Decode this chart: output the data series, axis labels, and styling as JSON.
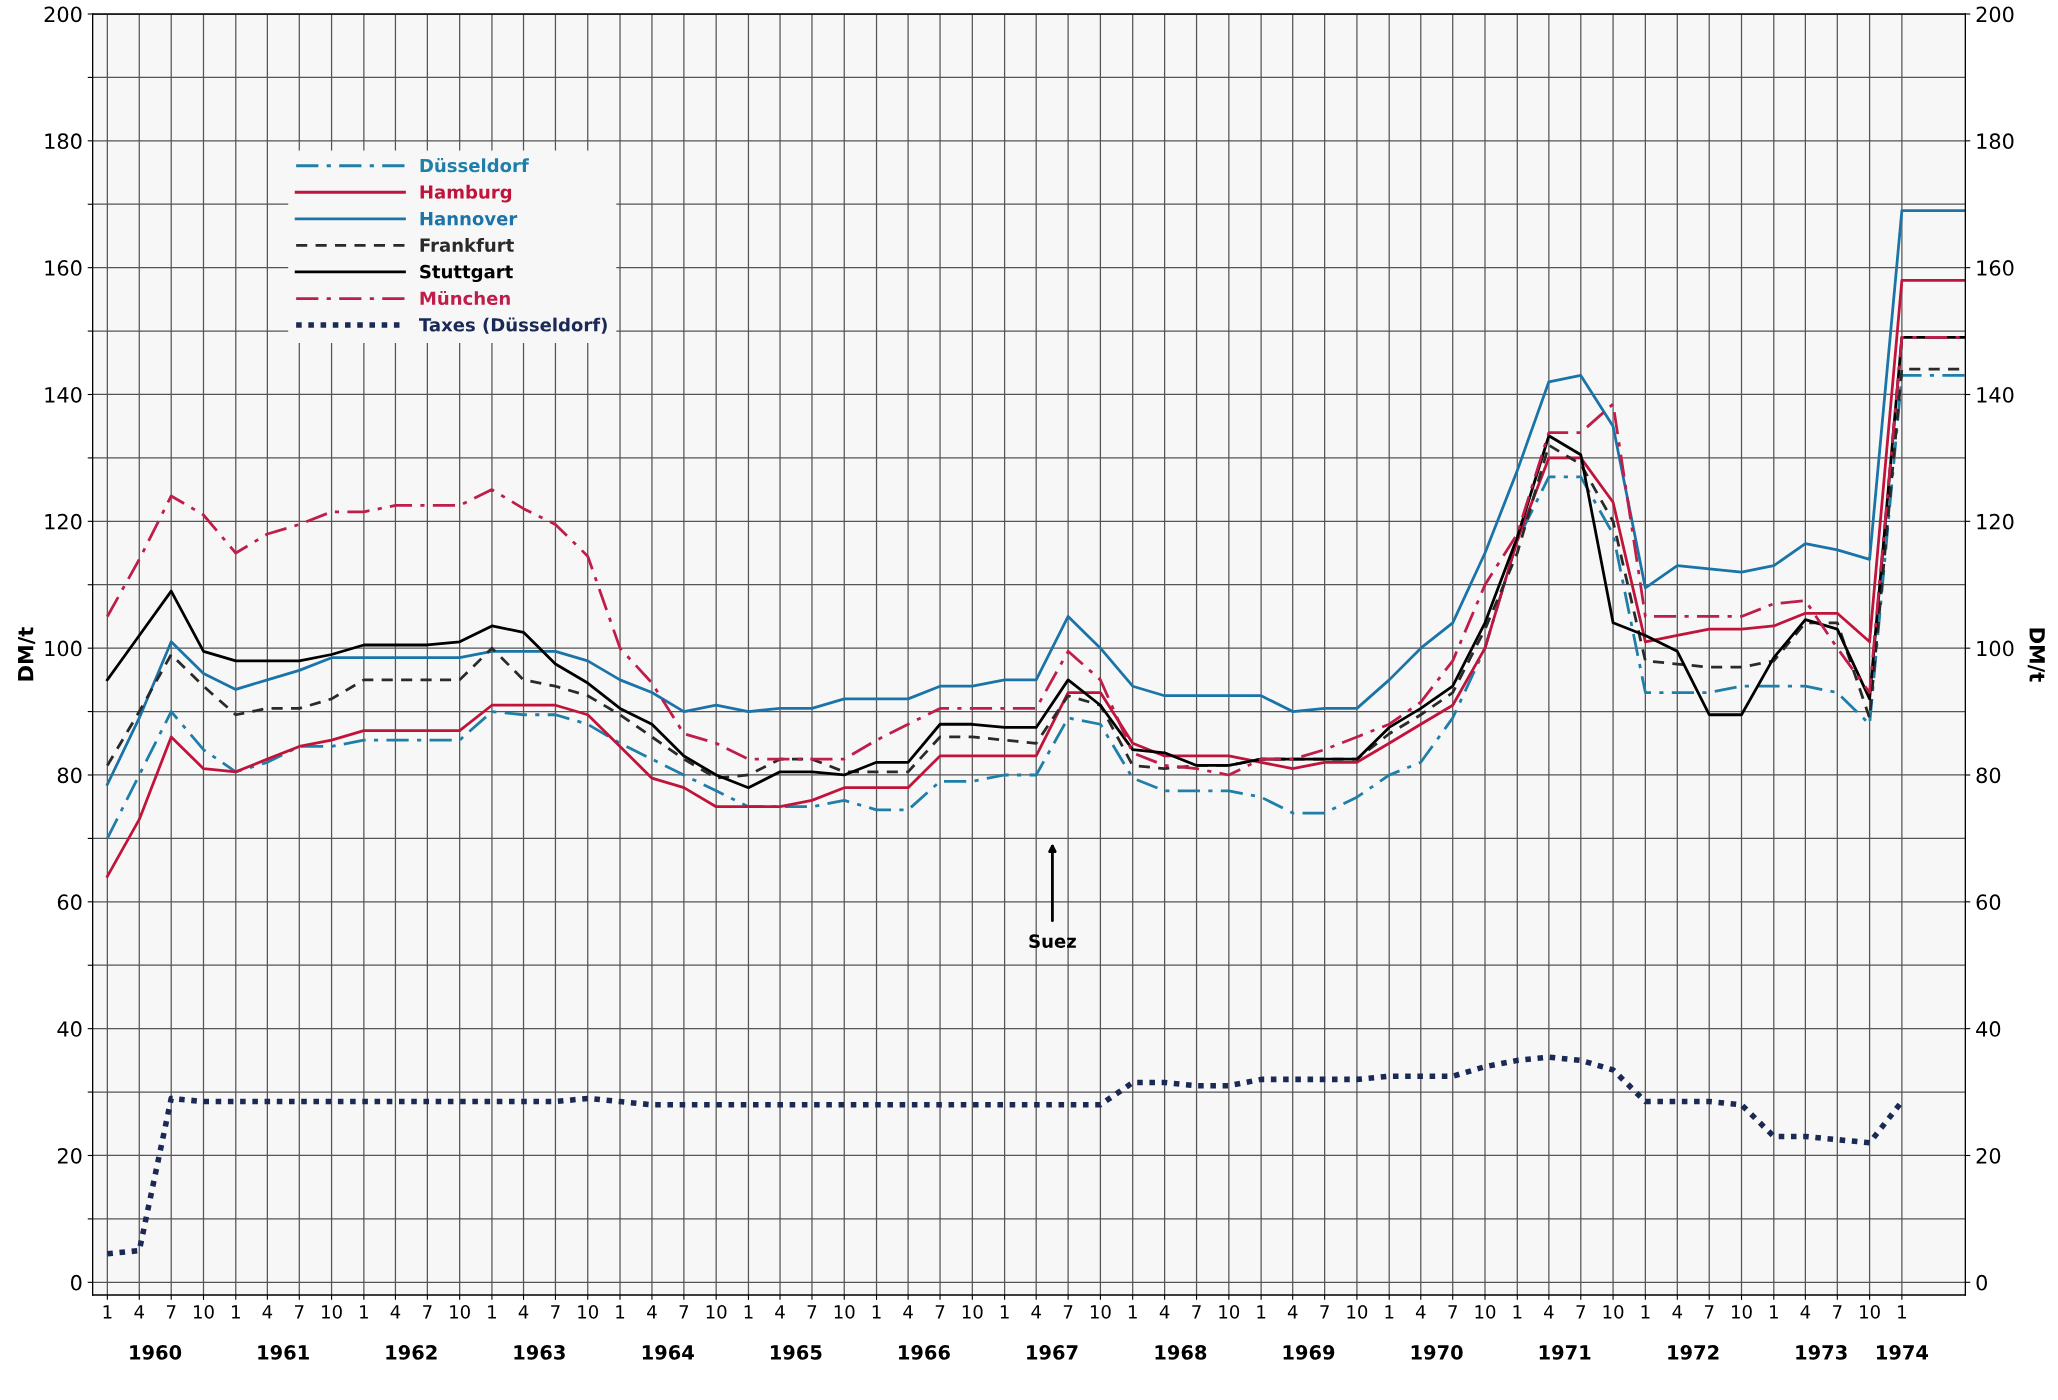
{
  "chart_data": {
    "type": "line",
    "x": [
      "1960-01",
      "1960-04",
      "1960-07",
      "1960-10",
      "1961-01",
      "1961-04",
      "1961-07",
      "1961-10",
      "1962-01",
      "1962-04",
      "1962-07",
      "1962-10",
      "1963-01",
      "1963-04",
      "1963-07",
      "1963-10",
      "1964-01",
      "1964-04",
      "1964-07",
      "1964-10",
      "1965-01",
      "1965-04",
      "1965-07",
      "1965-10",
      "1966-01",
      "1966-04",
      "1966-07",
      "1966-10",
      "1967-01",
      "1967-04",
      "1967-07",
      "1967-10",
      "1968-01",
      "1968-04",
      "1968-07",
      "1968-10",
      "1969-01",
      "1969-04",
      "1969-07",
      "1969-10",
      "1970-01",
      "1970-04",
      "1970-07",
      "1970-10",
      "1971-01",
      "1971-04",
      "1971-07",
      "1971-10",
      "1972-01",
      "1972-04",
      "1972-07",
      "1972-10",
      "1973-01",
      "1973-04",
      "1973-07",
      "1973-10",
      "1974-01",
      "1974-07"
    ],
    "series": [
      {
        "name": "Düsseldorf",
        "color": "#1f7fa8",
        "line_style": "dashdot",
        "values": [
          70,
          80,
          90,
          84,
          80.5,
          82,
          84.5,
          84.5,
          85.5,
          85.5,
          85.5,
          85.5,
          90,
          89.5,
          89.5,
          88,
          85,
          82.5,
          80,
          77.5,
          75,
          75,
          75,
          76,
          74.5,
          74.5,
          79,
          79,
          80,
          80,
          89,
          88,
          79.5,
          77.5,
          77.5,
          77.5,
          76.5,
          74,
          74,
          76.5,
          80,
          82,
          89,
          100,
          117,
          127,
          127,
          118,
          93,
          93,
          93,
          94,
          94,
          94,
          93,
          88,
          143,
          143
        ]
      },
      {
        "name": "Hamburg",
        "color": "#c0143c",
        "line_style": "solid",
        "values": [
          64,
          73,
          86,
          81,
          80.5,
          82.5,
          84.5,
          85.5,
          87,
          87,
          87,
          87,
          91,
          91,
          91,
          89.5,
          84.5,
          79.5,
          78,
          75,
          75,
          75,
          76,
          78,
          78,
          78,
          83,
          83,
          83,
          83,
          93,
          93,
          85,
          83,
          83,
          83,
          82,
          81,
          82,
          82,
          85,
          88,
          91,
          100,
          117,
          130,
          130,
          123,
          101,
          102,
          103,
          103,
          103.5,
          105.5,
          105.5,
          101,
          158,
          158
        ]
      },
      {
        "name": "Hannover",
        "color": "#1a74a8",
        "line_style": "solid",
        "values": [
          78.5,
          89,
          101,
          96,
          93.5,
          95,
          96.5,
          98.5,
          98.5,
          98.5,
          98.5,
          98.5,
          99.5,
          99.5,
          99.5,
          98,
          95,
          93,
          90,
          91,
          90,
          90.5,
          90.5,
          92,
          92,
          92,
          94,
          94,
          95,
          95,
          105,
          100,
          94,
          92.5,
          92.5,
          92.5,
          92.5,
          90,
          90.5,
          90.5,
          95,
          100,
          104,
          115,
          128,
          142,
          143,
          135,
          109.5,
          113,
          112.5,
          112,
          113,
          116.5,
          115.5,
          114,
          169,
          169
        ]
      },
      {
        "name": "Frankfurt",
        "color": "#2a2a2a",
        "line_style": "dashed",
        "values": [
          81.5,
          90,
          99,
          94,
          89.5,
          90.5,
          90.5,
          92,
          95,
          95,
          95,
          95,
          100,
          95,
          94,
          92.5,
          89.5,
          86,
          82.5,
          79.5,
          80,
          82.5,
          82.5,
          80.5,
          80.5,
          80.5,
          86,
          86,
          85.5,
          85,
          92.5,
          91,
          81.5,
          81,
          81.5,
          81.5,
          82.5,
          82.5,
          82.5,
          82.5,
          86.5,
          89.5,
          93,
          103,
          115,
          132,
          129,
          120,
          98,
          97.5,
          97,
          97,
          98,
          104,
          104,
          89,
          144,
          144
        ]
      },
      {
        "name": "Stuttgart",
        "color": "#000000",
        "line_style": "solid",
        "values": [
          95,
          102,
          109,
          99.5,
          98,
          98,
          98,
          99,
          100.5,
          100.5,
          100.5,
          101,
          103.5,
          102.5,
          97.5,
          94.5,
          90.5,
          88,
          83,
          80,
          78,
          80.5,
          80.5,
          80,
          82,
          82,
          88,
          88,
          87.5,
          87.5,
          95,
          91,
          84,
          83.5,
          81.5,
          81.5,
          82.5,
          82.5,
          82.5,
          82.5,
          87.5,
          90.5,
          94,
          104,
          117.5,
          133.5,
          130.5,
          104,
          102,
          99.5,
          89.5,
          89.5,
          98.5,
          104.5,
          103,
          92,
          149,
          149
        ]
      },
      {
        "name": "München",
        "color": "#c01e4a",
        "line_style": "dashdot",
        "values": [
          105,
          114,
          124,
          121,
          115,
          118,
          119.5,
          121.5,
          121.5,
          122.5,
          122.5,
          122.5,
          125,
          122,
          119.5,
          114.5,
          100,
          94.5,
          86.5,
          85,
          82.5,
          82.5,
          82.5,
          82.5,
          85.5,
          88,
          90.5,
          90.5,
          90.5,
          90.5,
          99.5,
          95,
          83.5,
          81.5,
          81,
          80,
          82.5,
          82.5,
          84,
          86,
          88,
          91.5,
          98,
          110,
          118,
          134,
          134,
          138.5,
          105,
          105,
          105,
          105,
          107,
          107.5,
          100,
          93,
          149,
          149
        ]
      },
      {
        "name": "Taxes (Düsseldorf)",
        "color": "#1b2a55",
        "line_style": "dotted",
        "values": [
          4.5,
          5,
          29,
          28.5,
          28.5,
          28.5,
          28.5,
          28.5,
          28.5,
          28.5,
          28.5,
          28.5,
          28.5,
          28.5,
          28.5,
          29,
          28.5,
          28,
          28,
          28,
          28,
          28,
          28,
          28,
          28,
          28,
          28,
          28,
          28,
          28,
          28,
          28,
          31.5,
          31.5,
          31,
          31,
          32,
          32,
          32,
          32,
          32.5,
          32.5,
          32.5,
          34,
          35,
          35.5,
          35,
          33.5,
          28.5,
          28.5,
          28.5,
          28,
          23,
          23,
          22.5,
          22,
          28.5,
          null
        ]
      }
    ],
    "ylabel": "DM/t",
    "y2label": "DM/t",
    "ylim": [
      -2,
      200
    ],
    "y2lim": [
      -2,
      200
    ],
    "yticks": [
      0,
      {
        "value": 10,
        "label": null
      },
      20,
      {
        "value": 30,
        "label": null
      },
      40,
      {
        "value": 50,
        "label": null
      },
      60,
      {
        "value": 70,
        "label": null
      },
      80,
      {
        "value": 90,
        "label": null
      },
      100,
      {
        "value": 110,
        "label": null
      },
      120,
      {
        "value": 130,
        "label": null
      },
      140,
      {
        "value": 150,
        "label": null
      },
      160,
      {
        "value": 170,
        "label": null
      },
      180,
      {
        "value": 190,
        "label": null
      },
      200
    ],
    "y2ticks": [
      0,
      20,
      40,
      60,
      80,
      100,
      120,
      140,
      160,
      180,
      200
    ],
    "xlim": [
      "1959-11-20",
      "1974-07"
    ],
    "xticks": [
      {
        "value": "1960-01",
        "label": "1"
      },
      {
        "value": "1960-04",
        "label": "4"
      },
      {
        "value": "1960-07",
        "label": "7"
      },
      {
        "value": "1960-10",
        "label": "10"
      },
      {
        "value": "1961-01",
        "label": "1"
      },
      {
        "value": "1961-04",
        "label": "4"
      },
      {
        "value": "1961-07",
        "label": "7"
      },
      {
        "value": "1961-10",
        "label": "10"
      },
      {
        "value": "1962-01",
        "label": "1"
      },
      {
        "value": "1962-04",
        "label": "4"
      },
      {
        "value": "1962-07",
        "label": "7"
      },
      {
        "value": "1962-10",
        "label": "10"
      },
      {
        "value": "1963-01",
        "label": "1"
      },
      {
        "value": "1963-04",
        "label": "4"
      },
      {
        "value": "1963-07",
        "label": "7"
      },
      {
        "value": "1963-10",
        "label": "10"
      },
      {
        "value": "1964-01",
        "label": "1"
      },
      {
        "value": "1964-04",
        "label": "4"
      },
      {
        "value": "1964-07",
        "label": "7"
      },
      {
        "value": "1964-10",
        "label": "10"
      },
      {
        "value": "1965-01",
        "label": "1"
      },
      {
        "value": "1965-04",
        "label": "4"
      },
      {
        "value": "1965-07",
        "label": "7"
      },
      {
        "value": "1965-10",
        "label": "10"
      },
      {
        "value": "1966-01",
        "label": "1"
      },
      {
        "value": "1966-04",
        "label": "4"
      },
      {
        "value": "1966-07",
        "label": "7"
      },
      {
        "value": "1966-10",
        "label": "10"
      },
      {
        "value": "1967-01",
        "label": "1"
      },
      {
        "value": "1967-04",
        "label": "4"
      },
      {
        "value": "1967-07",
        "label": "7"
      },
      {
        "value": "1967-10",
        "label": "10"
      },
      {
        "value": "1968-01",
        "label": "1"
      },
      {
        "value": "1968-04",
        "label": "4"
      },
      {
        "value": "1968-07",
        "label": "7"
      },
      {
        "value": "1968-10",
        "label": "10"
      },
      {
        "value": "1969-01",
        "label": "1"
      },
      {
        "value": "1969-04",
        "label": "4"
      },
      {
        "value": "1969-07",
        "label": "7"
      },
      {
        "value": "1969-10",
        "label": "10"
      },
      {
        "value": "1970-01",
        "label": "1"
      },
      {
        "value": "1970-04",
        "label": "4"
      },
      {
        "value": "1970-07",
        "label": "7"
      },
      {
        "value": "1970-10",
        "label": "10"
      },
      {
        "value": "1971-01",
        "label": "1"
      },
      {
        "value": "1971-04",
        "label": "4"
      },
      {
        "value": "1971-07",
        "label": "7"
      },
      {
        "value": "1971-10",
        "label": "10"
      },
      {
        "value": "1972-01",
        "label": "1"
      },
      {
        "value": "1972-04",
        "label": "4"
      },
      {
        "value": "1972-07",
        "label": "7"
      },
      {
        "value": "1972-10",
        "label": "10"
      },
      {
        "value": "1973-01",
        "label": "1"
      },
      {
        "value": "1973-04",
        "label": "4"
      },
      {
        "value": "1973-07",
        "label": "7"
      },
      {
        "value": "1973-10",
        "label": "10"
      },
      {
        "value": "1974-01",
        "label": "1"
      }
    ],
    "x2ticks": [
      {
        "value": "1960-05-16",
        "label": "1960"
      },
      {
        "value": "1961-05-16",
        "label": "1961"
      },
      {
        "value": "1962-05-16",
        "label": "1962"
      },
      {
        "value": "1963-05-16",
        "label": "1963"
      },
      {
        "value": "1964-05-16",
        "label": "1964"
      },
      {
        "value": "1965-05-16",
        "label": "1965"
      },
      {
        "value": "1966-05-16",
        "label": "1966"
      },
      {
        "value": "1967-05-16",
        "label": "1967"
      },
      {
        "value": "1968-05-16",
        "label": "1968"
      },
      {
        "value": "1969-05-16",
        "label": "1969"
      },
      {
        "value": "1970-05-16",
        "label": "1970"
      },
      {
        "value": "1971-05-16",
        "label": "1971"
      },
      {
        "value": "1972-05-16",
        "label": "1972"
      },
      {
        "value": "1973-05-16",
        "label": "1973"
      },
      {
        "value": "1974-01",
        "label": "1974"
      }
    ],
    "annotations": [
      "Suez"
    ],
    "x2lim": [
      "1959-11-20",
      "1974-07"
    ],
    "grid": true,
    "legend": "top left"
  }
}
